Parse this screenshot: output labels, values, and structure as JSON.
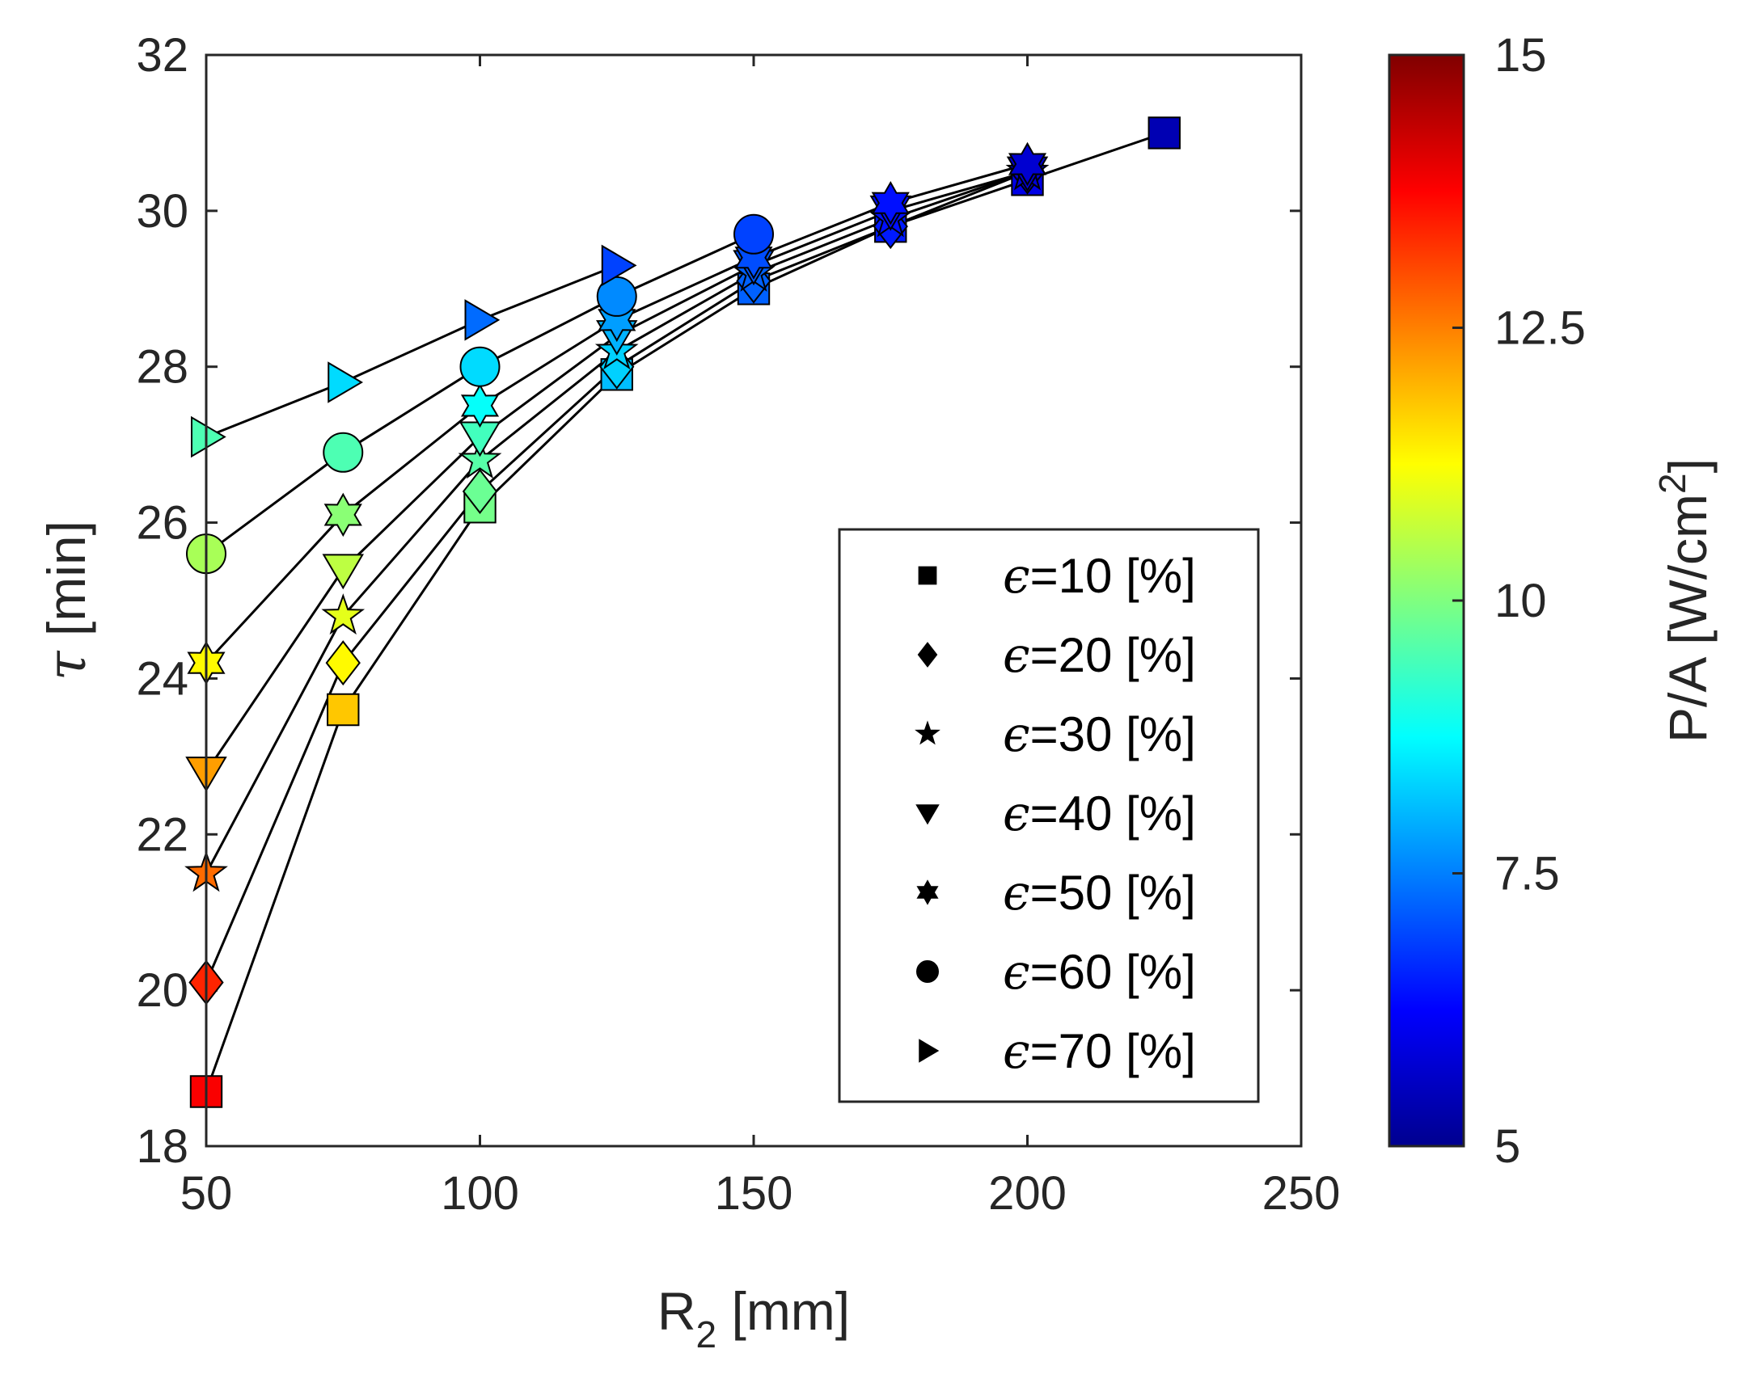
{
  "chart_data": {
    "type": "scatter",
    "xlabel": "R",
    "xlabel_sub": "2",
    "xlabel_unit": " [mm]",
    "ylabel_symbol": "τ",
    "ylabel_unit": " [min]",
    "xlim": [
      50,
      250
    ],
    "ylim": [
      18,
      32
    ],
    "xticks": [
      "50",
      "100",
      "150",
      "200",
      "250"
    ],
    "yticks": [
      "18",
      "20",
      "22",
      "24",
      "26",
      "28",
      "30",
      "32"
    ],
    "colorbar": {
      "label": "P/A [W/cm",
      "label_sup": "2",
      "label_end": "]",
      "lim": [
        5,
        15
      ],
      "ticks": [
        "5",
        "7.5",
        "10",
        "12.5",
        "15"
      ],
      "colormap": "jet"
    },
    "series": [
      {
        "name": "ϵ=10 [%]",
        "eps": "ϵ",
        "rest": "=10 [%]",
        "marker": "square",
        "x": [
          50,
          75,
          100,
          125,
          150,
          175,
          200,
          225
        ],
        "y": [
          18.7,
          23.6,
          26.2,
          27.9,
          29.0,
          29.8,
          30.4,
          31.0
        ],
        "c": [
          13.8,
          11.8,
          9.9,
          8.1,
          7.2,
          6.5,
          6.0,
          5.5
        ]
      },
      {
        "name": "ϵ=20 [%]",
        "eps": "ϵ",
        "rest": "=20 [%]",
        "marker": "diamond",
        "x": [
          50,
          75,
          100,
          125,
          150,
          175,
          200
        ],
        "y": [
          20.1,
          24.2,
          26.4,
          28.0,
          29.1,
          29.8,
          30.5
        ],
        "c": [
          13.4,
          11.3,
          9.8,
          8.3,
          7.2,
          6.5,
          5.9
        ]
      },
      {
        "name": "ϵ=30 [%]",
        "eps": "ϵ",
        "rest": "=30 [%]",
        "marker": "star",
        "x": [
          50,
          75,
          100,
          125,
          150,
          175,
          200
        ],
        "y": [
          21.5,
          24.8,
          26.8,
          28.2,
          29.2,
          29.9,
          30.5
        ],
        "c": [
          12.7,
          11.0,
          9.6,
          8.3,
          7.2,
          6.4,
          5.9
        ]
      },
      {
        "name": "ϵ=40 [%]",
        "eps": "ϵ",
        "rest": "=40 [%]",
        "marker": "triangle-down",
        "x": [
          50,
          75,
          100,
          125,
          150,
          175,
          200
        ],
        "y": [
          22.8,
          25.4,
          27.1,
          28.4,
          29.3,
          30.0,
          30.5
        ],
        "c": [
          12.2,
          10.6,
          9.4,
          8.0,
          7.1,
          6.4,
          5.8
        ]
      },
      {
        "name": "ϵ=50 [%]",
        "eps": "ϵ",
        "rest": "=50 [%]",
        "marker": "hexagram",
        "x": [
          50,
          75,
          100,
          125,
          150,
          175,
          200
        ],
        "y": [
          24.2,
          26.1,
          27.5,
          28.6,
          29.4,
          30.1,
          30.6
        ],
        "c": [
          11.3,
          10.1,
          8.8,
          7.8,
          7.0,
          6.4,
          5.8
        ]
      },
      {
        "name": "ϵ=60 [%]",
        "eps": "ϵ",
        "rest": "=60 [%]",
        "marker": "circle",
        "x": [
          50,
          75,
          100,
          125,
          150
        ],
        "y": [
          25.6,
          26.9,
          28.0,
          28.9,
          29.7
        ],
        "c": [
          10.4,
          9.5,
          8.4,
          7.6,
          6.9
        ]
      },
      {
        "name": "ϵ=70 [%]",
        "eps": "ϵ",
        "rest": "=70 [%]",
        "marker": "triangle-right",
        "x": [
          50,
          75,
          100,
          125
        ],
        "y": [
          27.1,
          27.8,
          28.6,
          29.3
        ],
        "c": [
          9.5,
          8.4,
          7.3,
          6.9
        ]
      }
    ]
  }
}
